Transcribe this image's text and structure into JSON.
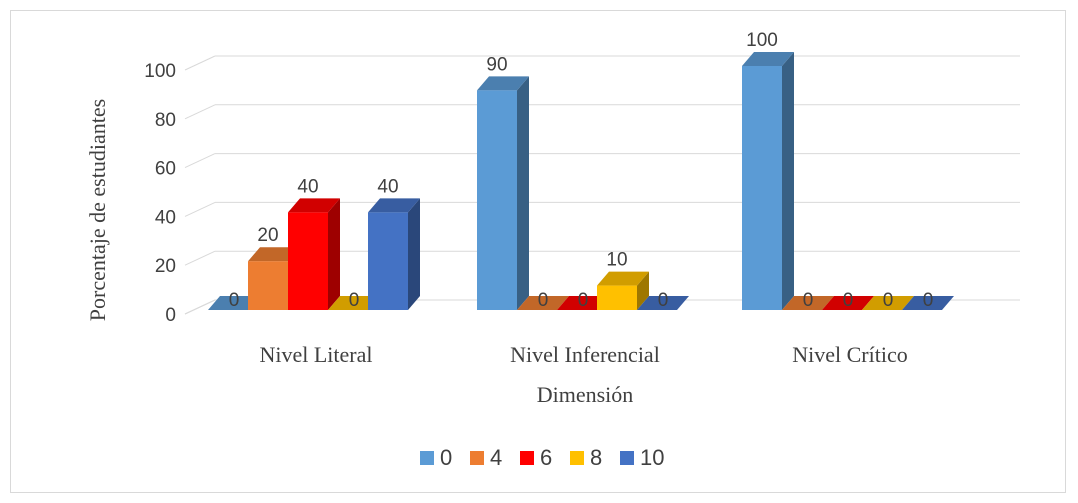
{
  "chart_data": {
    "type": "bar",
    "variant": "3d-clustered-column",
    "categories": [
      "Nivel Literal",
      "Nivel Inferencial",
      "Nivel Crítico"
    ],
    "series": [
      {
        "name": "0",
        "color": "#5b9bd5",
        "values": [
          0,
          90,
          100
        ]
      },
      {
        "name": "4",
        "color": "#ed7d31",
        "values": [
          20,
          0,
          0
        ]
      },
      {
        "name": "6",
        "color": "#ff0000",
        "values": [
          40,
          0,
          0
        ]
      },
      {
        "name": "8",
        "color": "#ffc000",
        "values": [
          0,
          10,
          0
        ]
      },
      {
        "name": "10",
        "color": "#4472c4",
        "values": [
          40,
          0,
          0
        ]
      }
    ],
    "title": "",
    "xlabel": "Dimensión",
    "ylabel": "Porcentaje de estudiantes",
    "ylim": [
      0,
      100
    ],
    "yticks": [
      "0",
      "20",
      "40",
      "60",
      "80",
      "100"
    ],
    "grid": true,
    "legend": "bottom"
  }
}
